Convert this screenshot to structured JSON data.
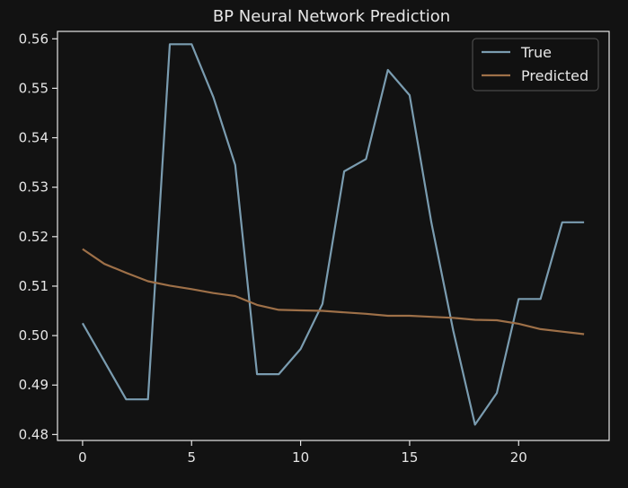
{
  "chart_data": {
    "type": "line",
    "title": "BP Neural Network Prediction",
    "xlabel": "",
    "ylabel": "",
    "xlim": [
      -1.15,
      24.15
    ],
    "ylim": [
      0.4788,
      0.5615
    ],
    "xticks": [
      0,
      5,
      10,
      15,
      20
    ],
    "yticks": [
      0.48,
      0.49,
      0.5,
      0.51,
      0.52,
      0.53,
      0.54,
      0.55,
      0.56
    ],
    "legend_position": "top-right",
    "grid": false,
    "x": [
      0,
      1,
      2,
      3,
      4,
      5,
      6,
      7,
      8,
      9,
      10,
      11,
      12,
      13,
      14,
      15,
      16,
      17,
      18,
      19,
      20,
      21,
      22,
      23
    ],
    "series": [
      {
        "name": "True",
        "color": "#7a9cb0",
        "values": [
          0.5025,
          0.4948,
          0.4871,
          0.4871,
          0.5589,
          0.5589,
          0.5482,
          0.5345,
          0.4922,
          0.4922,
          0.4973,
          0.5064,
          0.5332,
          0.5357,
          0.5537,
          0.5486,
          0.5228,
          0.501,
          0.482,
          0.4884,
          0.5074,
          0.5074,
          0.5229,
          0.5229
        ]
      },
      {
        "name": "Predicted",
        "color": "#9e7048",
        "values": [
          0.5175,
          0.5145,
          0.5127,
          0.511,
          0.5101,
          0.5094,
          0.5086,
          0.508,
          0.5062,
          0.5052,
          0.5051,
          0.505,
          0.5047,
          0.5044,
          0.504,
          0.504,
          0.5038,
          0.5036,
          0.5032,
          0.5031,
          0.5024,
          0.5013,
          0.5008,
          0.5003
        ]
      }
    ]
  }
}
